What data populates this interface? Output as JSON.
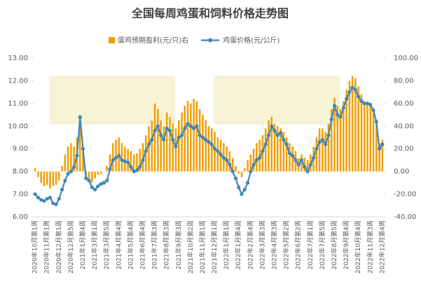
{
  "chart_data": {
    "type": "bar_line",
    "title": "全国每周鸡蛋和饲料价格走势图",
    "categories": [
      "2020年10月第1周",
      null,
      null,
      null,
      "2020年11月第1周",
      null,
      null,
      null,
      "2020年12月第1周",
      null,
      null,
      null,
      "2020年12月第5周",
      null,
      null,
      null,
      "2021年1月第4周",
      null,
      null,
      null,
      "2021年3月第1周",
      null,
      null,
      null,
      "2021年3月第5周",
      null,
      null,
      null,
      "2021年4月第4周",
      null,
      null,
      null,
      "2021年5月第4周",
      null,
      null,
      null,
      "2021年6月第4周",
      null,
      null,
      null,
      "2021年7月第3周",
      null,
      null,
      null,
      "2021年8月第3周",
      null,
      null,
      null,
      "2021年9月第3周",
      null,
      null,
      null,
      "2021年10月第2周",
      null,
      null,
      null,
      "2021年11月第1周",
      null,
      null,
      null,
      "2021年12月第1周",
      null,
      null,
      null,
      "2022年1月第1周",
      null,
      null,
      null,
      "2022年1月第4周",
      null,
      null,
      null,
      "2022年2月第4周",
      null,
      null,
      null,
      "2022年3月第3周",
      null,
      null,
      null,
      "2022年4月第3周",
      null,
      null,
      null,
      "2022年5月第2周",
      null,
      null,
      null,
      "2022年6月第2周",
      null,
      null,
      null,
      "2022年7月第1周",
      null,
      null,
      null,
      "2022年7月第5周",
      null,
      null,
      null,
      "2022年8月第5周",
      null,
      null,
      null,
      "2022年9月第4周",
      null,
      null,
      null,
      "2022年10月第4周",
      null,
      null,
      null,
      "2022年11月第3周",
      null,
      null,
      null,
      "2022年12月第4周"
    ],
    "series": [
      {
        "name": "蛋鸡预期盈利(元/只)右",
        "type": "bar",
        "axis": "y2",
        "color": "#f0a00a",
        "values": [
          3,
          -5,
          -10,
          -13,
          -12,
          -15,
          -13,
          -12,
          -8,
          5,
          15,
          22,
          25,
          22,
          30,
          45,
          20,
          -5,
          -8,
          -10,
          -6,
          -3,
          -2,
          0,
          5,
          15,
          25,
          28,
          30,
          25,
          22,
          20,
          18,
          15,
          16,
          20,
          25,
          32,
          40,
          45,
          60,
          55,
          45,
          40,
          52,
          48,
          42,
          38,
          45,
          52,
          58,
          62,
          60,
          64,
          62,
          55,
          50,
          45,
          40,
          38,
          35,
          30,
          28,
          25,
          22,
          18,
          12,
          5,
          -2,
          -5,
          3,
          10,
          15,
          20,
          25,
          28,
          32,
          38,
          45,
          48,
          42,
          40,
          38,
          35,
          30,
          25,
          22,
          18,
          12,
          15,
          12,
          10,
          15,
          22,
          30,
          38,
          38,
          35,
          42,
          55,
          65,
          58,
          55,
          62,
          72,
          80,
          84,
          82,
          75,
          68,
          62,
          60,
          58,
          52,
          45,
          25,
          28
        ]
      },
      {
        "name": "鸡蛋价格(元/公斤)",
        "type": "line",
        "color": "#3f87b5",
        "values": [
          7.0,
          6.85,
          6.75,
          6.7,
          6.8,
          6.85,
          6.6,
          6.55,
          6.8,
          7.2,
          7.6,
          7.9,
          8.0,
          8.2,
          8.7,
          10.4,
          9.0,
          7.7,
          7.6,
          7.3,
          7.2,
          7.35,
          7.45,
          7.5,
          7.6,
          8.1,
          8.5,
          8.6,
          8.7,
          8.5,
          8.45,
          8.4,
          8.2,
          8.0,
          8.05,
          8.2,
          8.5,
          8.9,
          9.2,
          9.4,
          9.8,
          10.0,
          9.6,
          9.4,
          9.9,
          9.8,
          9.4,
          9.1,
          9.5,
          9.6,
          9.9,
          10.1,
          10.0,
          9.9,
          10.0,
          9.6,
          9.5,
          9.4,
          9.3,
          9.2,
          9.0,
          8.9,
          8.75,
          8.6,
          8.5,
          8.3,
          8.0,
          7.7,
          7.3,
          7.0,
          7.2,
          7.5,
          8.0,
          8.3,
          8.5,
          8.6,
          8.9,
          9.2,
          9.6,
          10.0,
          9.8,
          9.6,
          9.7,
          9.4,
          9.2,
          8.8,
          8.7,
          8.5,
          8.3,
          8.5,
          8.2,
          8.0,
          8.3,
          8.6,
          9.0,
          9.3,
          9.4,
          9.2,
          9.6,
          10.3,
          10.9,
          10.5,
          10.4,
          10.8,
          11.2,
          11.5,
          11.7,
          11.6,
          11.3,
          11.1,
          11.0,
          11.0,
          10.95,
          10.7,
          10.2,
          9.0,
          9.2
        ]
      }
    ],
    "ylim": [
      6,
      13
    ],
    "yticks": [
      {
        "value": 6,
        "label": "6.00"
      },
      {
        "value": 7,
        "label": "7.00"
      },
      {
        "value": 8,
        "label": "8.00"
      },
      {
        "value": 9,
        "label": "9.00"
      },
      {
        "value": 10,
        "label": "10.00"
      },
      {
        "value": 11,
        "label": "11.00"
      },
      {
        "value": 12,
        "label": "12.00"
      },
      {
        "value": 13,
        "label": "13.00"
      }
    ],
    "y2lim": [
      -40,
      100
    ],
    "y2ticks": [
      {
        "value": -40,
        "label": "-40.00"
      },
      {
        "value": -20,
        "label": "-20.00"
      },
      {
        "value": 0,
        "label": "0.00"
      },
      {
        "value": 20,
        "label": "20.00"
      },
      {
        "value": 40,
        "label": "40.00"
      },
      {
        "value": 60,
        "label": "60.00"
      },
      {
        "value": 80,
        "label": "80.00"
      },
      {
        "value": 100,
        "label": "100.00"
      }
    ]
  }
}
